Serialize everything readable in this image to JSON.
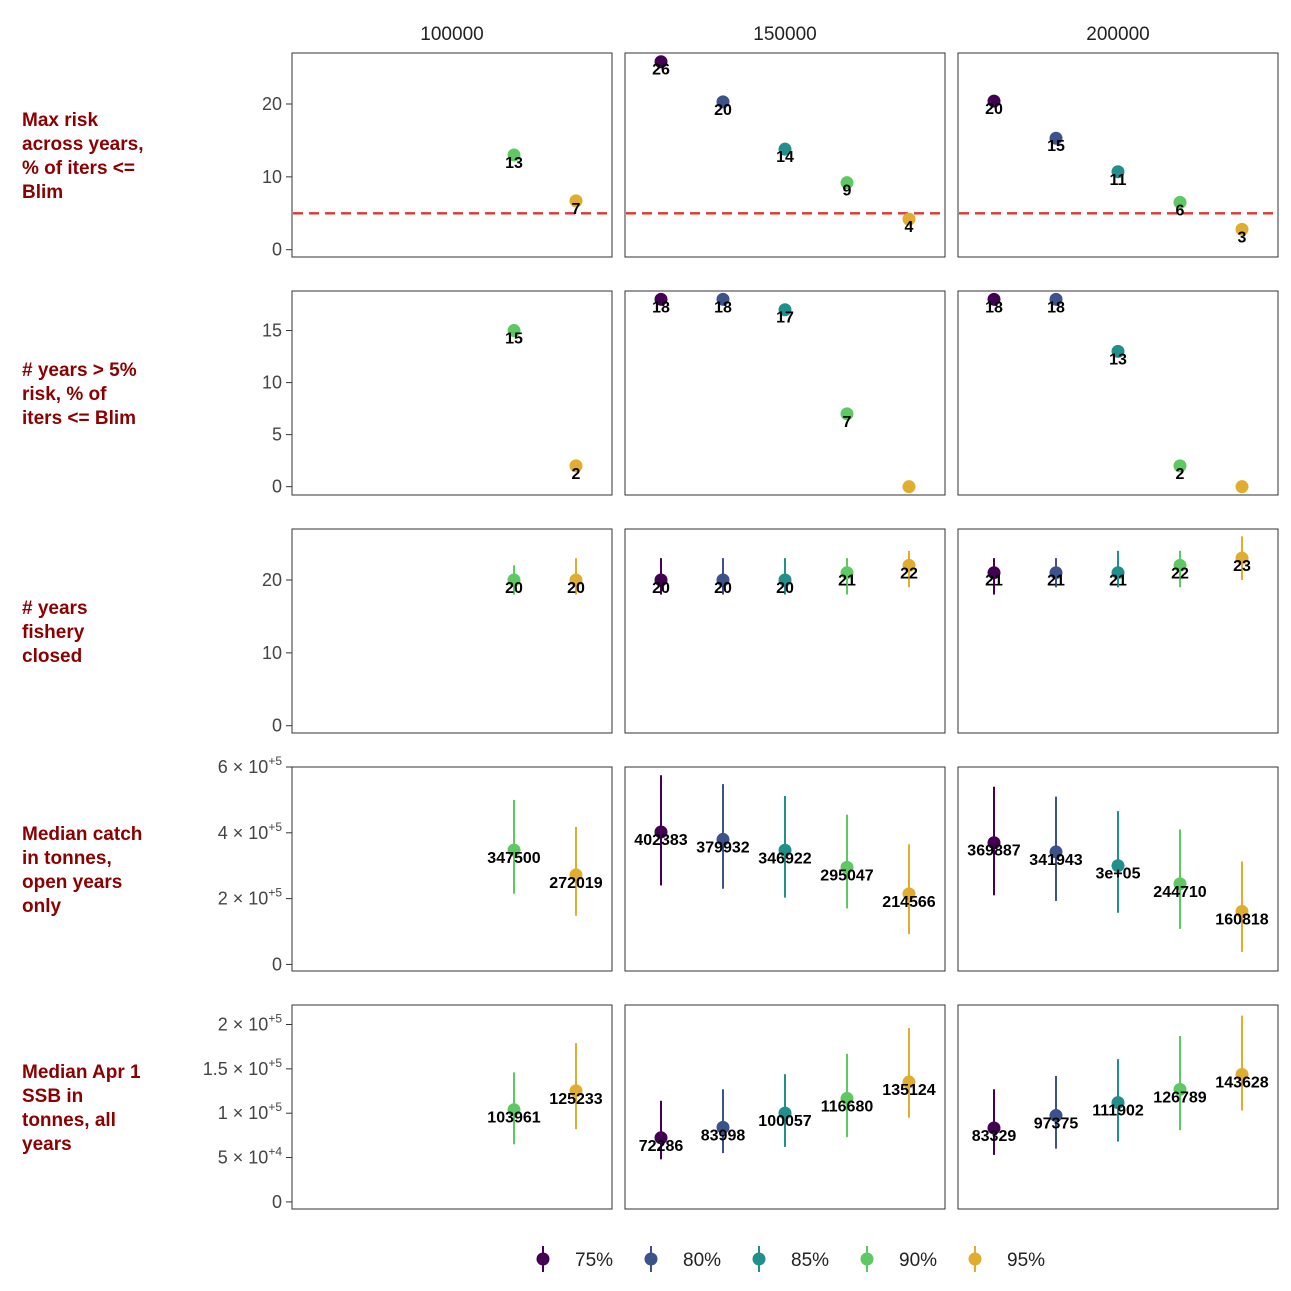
{
  "chart_data": {
    "type": "scatter",
    "description_axis": "faceted point-range plot",
    "columns": [
      "100000",
      "150000",
      "200000"
    ],
    "legend": [
      "75%",
      "80%",
      "85%",
      "90%",
      "95%"
    ],
    "colors": {
      "75%": "#440154",
      "80%": "#3b528b",
      "85%": "#21908c",
      "90%": "#5ec962",
      "95%": "#e0ad2e"
    },
    "reference_line_color": "#e8312f",
    "rows": [
      {
        "label": [
          "Max risk",
          "across years,",
          "% of iters <=",
          "Blim"
        ],
        "ylim": [
          -1,
          27
        ],
        "ticks": [
          {
            "v": 0,
            "t": "0"
          },
          {
            "v": 10,
            "t": "10"
          },
          {
            "v": 20,
            "t": "20"
          }
        ],
        "hline": 5,
        "points": [
          [
            {
              "s": "90%",
              "y": 13,
              "label": "13"
            },
            {
              "s": "95%",
              "y": 6.7,
              "label": "7"
            }
          ],
          [
            {
              "s": "75%",
              "y": 25.8,
              "label": "26"
            },
            {
              "s": "80%",
              "y": 20.3,
              "label": "20"
            },
            {
              "s": "85%",
              "y": 13.8,
              "label": "14"
            },
            {
              "s": "90%",
              "y": 9.2,
              "label": "9"
            },
            {
              "s": "95%",
              "y": 4.2,
              "label": "4"
            }
          ],
          [
            {
              "s": "75%",
              "y": 20.4,
              "label": "20"
            },
            {
              "s": "80%",
              "y": 15.3,
              "label": "15"
            },
            {
              "s": "85%",
              "y": 10.7,
              "label": "11"
            },
            {
              "s": "90%",
              "y": 6.5,
              "label": "6"
            },
            {
              "s": "95%",
              "y": 2.8,
              "label": "3"
            }
          ]
        ]
      },
      {
        "label": [
          "# years > 5%",
          "risk, % of",
          "iters <= Blim"
        ],
        "ylim": [
          -0.8,
          18.8
        ],
        "ticks": [
          {
            "v": 0,
            "t": "0"
          },
          {
            "v": 5,
            "t": "5"
          },
          {
            "v": 10,
            "t": "10"
          },
          {
            "v": 15,
            "t": "15"
          }
        ],
        "points": [
          [
            {
              "s": "90%",
              "y": 15,
              "label": "15"
            },
            {
              "s": "95%",
              "y": 2,
              "label": "2"
            }
          ],
          [
            {
              "s": "75%",
              "y": 18,
              "label": "18"
            },
            {
              "s": "80%",
              "y": 18,
              "label": "18"
            },
            {
              "s": "85%",
              "y": 17,
              "label": "17"
            },
            {
              "s": "90%",
              "y": 7,
              "label": "7"
            },
            {
              "s": "95%",
              "y": 0,
              "label": ""
            }
          ],
          [
            {
              "s": "75%",
              "y": 18,
              "label": "18"
            },
            {
              "s": "80%",
              "y": 18,
              "label": "18"
            },
            {
              "s": "85%",
              "y": 13,
              "label": "13"
            },
            {
              "s": "90%",
              "y": 2,
              "label": "2"
            },
            {
              "s": "95%",
              "y": 0,
              "label": ""
            }
          ]
        ]
      },
      {
        "label": [
          "# years",
          "fishery",
          "closed"
        ],
        "ylim": [
          -1,
          27
        ],
        "ticks": [
          {
            "v": 0,
            "t": "0"
          },
          {
            "v": 10,
            "t": "10"
          },
          {
            "v": 20,
            "t": "20"
          }
        ],
        "points": [
          [
            {
              "s": "90%",
              "y": 20,
              "lo": 18,
              "hi": 22,
              "label": "20"
            },
            {
              "s": "95%",
              "y": 20,
              "lo": 18,
              "hi": 23,
              "label": "20"
            }
          ],
          [
            {
              "s": "75%",
              "y": 20,
              "lo": 18,
              "hi": 23,
              "label": "20"
            },
            {
              "s": "80%",
              "y": 20,
              "lo": 18,
              "hi": 23,
              "label": "20"
            },
            {
              "s": "85%",
              "y": 20,
              "lo": 18,
              "hi": 23,
              "label": "20"
            },
            {
              "s": "90%",
              "y": 21,
              "lo": 18,
              "hi": 23,
              "label": "21"
            },
            {
              "s": "95%",
              "y": 22,
              "lo": 19,
              "hi": 24,
              "label": "22"
            }
          ],
          [
            {
              "s": "75%",
              "y": 21,
              "lo": 18,
              "hi": 23,
              "label": "21"
            },
            {
              "s": "80%",
              "y": 21,
              "lo": 19,
              "hi": 23,
              "label": "21"
            },
            {
              "s": "85%",
              "y": 21,
              "lo": 19,
              "hi": 24,
              "label": "21"
            },
            {
              "s": "90%",
              "y": 22,
              "lo": 19,
              "hi": 24,
              "label": "22"
            },
            {
              "s": "95%",
              "y": 23,
              "lo": 20,
              "hi": 26,
              "label": "23"
            }
          ]
        ]
      },
      {
        "label": [
          "Median catch",
          "in tonnes,",
          "open years",
          "only"
        ],
        "ylim": [
          -20000,
          600000
        ],
        "ticks": [
          {
            "v": 0,
            "t": "0"
          },
          {
            "v": 200000,
            "t": "2 × 10",
            "sup": "+5"
          },
          {
            "v": 400000,
            "t": "4 × 10",
            "sup": "+5"
          },
          {
            "v": 600000,
            "t": "6 × 10",
            "sup": "+5"
          }
        ],
        "points": [
          [
            {
              "s": "90%",
              "y": 347500,
              "lo": 215000,
              "hi": 500000,
              "label": "347500"
            },
            {
              "s": "95%",
              "y": 272019,
              "lo": 148000,
              "hi": 418000,
              "label": "272019"
            }
          ],
          [
            {
              "s": "75%",
              "y": 402383,
              "lo": 240000,
              "hi": 575000,
              "label": "402383"
            },
            {
              "s": "80%",
              "y": 379932,
              "lo": 230000,
              "hi": 548000,
              "label": "379932"
            },
            {
              "s": "85%",
              "y": 346922,
              "lo": 203000,
              "hi": 512000,
              "label": "346922"
            },
            {
              "s": "90%",
              "y": 295047,
              "lo": 170000,
              "hi": 455000,
              "label": "295047"
            },
            {
              "s": "95%",
              "y": 214566,
              "lo": 92000,
              "hi": 365000,
              "label": "214566"
            }
          ],
          [
            {
              "s": "75%",
              "y": 369887,
              "lo": 210000,
              "hi": 540000,
              "label": "369887"
            },
            {
              "s": "80%",
              "y": 341943,
              "lo": 193000,
              "hi": 510000,
              "label": "341943"
            },
            {
              "s": "85%",
              "y": 300000,
              "lo": 157000,
              "hi": 466000,
              "label": "3e+05"
            },
            {
              "s": "90%",
              "y": 244710,
              "lo": 108000,
              "hi": 410000,
              "label": "244710"
            },
            {
              "s": "95%",
              "y": 160818,
              "lo": 38000,
              "hi": 313000,
              "label": "160818"
            }
          ]
        ]
      },
      {
        "label": [
          "Median Apr 1",
          "SSB in",
          "tonnes, all",
          "years"
        ],
        "ylim": [
          -8000,
          222000
        ],
        "ticks": [
          {
            "v": 0,
            "t": "0"
          },
          {
            "v": 50000,
            "t": "5 × 10",
            "sup": "+4"
          },
          {
            "v": 100000,
            "t": "1 × 10",
            "sup": "+5"
          },
          {
            "v": 150000,
            "t": "1.5 × 10",
            "sup": "+5"
          },
          {
            "v": 200000,
            "t": "2 × 10",
            "sup": "+5"
          }
        ],
        "points": [
          [
            {
              "s": "90%",
              "y": 103961,
              "lo": 65000,
              "hi": 146000,
              "label": "103961"
            },
            {
              "s": "95%",
              "y": 125233,
              "lo": 82000,
              "hi": 179000,
              "label": "125233"
            }
          ],
          [
            {
              "s": "75%",
              "y": 72286,
              "lo": 48000,
              "hi": 114000,
              "label": "72286"
            },
            {
              "s": "80%",
              "y": 83998,
              "lo": 55000,
              "hi": 127000,
              "label": "83998"
            },
            {
              "s": "85%",
              "y": 100057,
              "lo": 62000,
              "hi": 144000,
              "label": "100057"
            },
            {
              "s": "90%",
              "y": 116680,
              "lo": 73000,
              "hi": 167000,
              "label": "116680"
            },
            {
              "s": "95%",
              "y": 135124,
              "lo": 95000,
              "hi": 196000,
              "label": "135124"
            }
          ],
          [
            {
              "s": "75%",
              "y": 83329,
              "lo": 53000,
              "hi": 127000,
              "label": "83329"
            },
            {
              "s": "80%",
              "y": 97375,
              "lo": 60000,
              "hi": 142000,
              "label": "97375"
            },
            {
              "s": "85%",
              "y": 111902,
              "lo": 68000,
              "hi": 161000,
              "label": "111902"
            },
            {
              "s": "90%",
              "y": 126789,
              "lo": 81000,
              "hi": 187000,
              "label": "126789"
            },
            {
              "s": "95%",
              "y": 143628,
              "lo": 103000,
              "hi": 210000,
              "label": "143628"
            }
          ]
        ]
      }
    ]
  }
}
